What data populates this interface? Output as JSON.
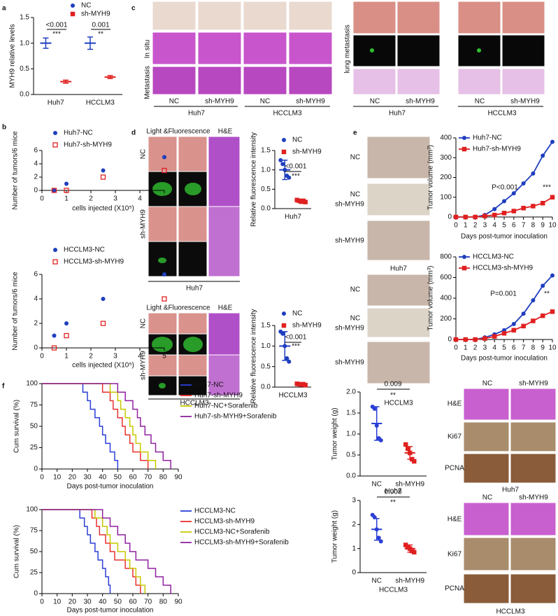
{
  "figure": {
    "panel_labels": [
      "a",
      "b",
      "c",
      "d",
      "e",
      "f"
    ],
    "image_labels": [
      "In situ",
      "Metastasis",
      "NC",
      "sh-MYH9",
      "NC",
      "sh-MYH9",
      "Huh7",
      "HCCLM3",
      "lung metastasis",
      "NC",
      "sh-MYH9",
      "NC",
      "sh-MYH9",
      "Huh7",
      "HCCLM3",
      "Light &Fluorescence",
      "H&E",
      "NC",
      "sh-MYH9",
      "Huh7",
      "Light &Fluorescence",
      "H&E",
      "NC",
      "sh-MYH9",
      "HCCLM3",
      "NC",
      "NC",
      "sh-MYH9",
      "sh-MYH9",
      "Huh7",
      "NC",
      "NC",
      "sh-MYH9",
      "sh-MYH9",
      "HCCLM3",
      "NC",
      "sh-MYH9",
      "H&E",
      "Ki67",
      "PCNA",
      "Huh7",
      "NC",
      "sh-MYH9",
      "H&E",
      "Ki67",
      "PCNA",
      "HCCLM3"
    ]
  },
  "chart_data": [
    {
      "type": "dot",
      "ylabel": "MYH9 relative levels",
      "categories": [
        "Huh7",
        "HCCLM3"
      ],
      "series": [
        {
          "name": "NC",
          "color": "#1f3fbf",
          "marker": "circle",
          "values": [
            1.0,
            1.0
          ],
          "errors": [
            0.1,
            0.12
          ]
        },
        {
          "name": "sh-MYH9",
          "color": "#e02020",
          "marker": "square",
          "values": [
            0.25,
            0.34
          ],
          "errors": [
            0.03,
            0.03
          ]
        }
      ],
      "ylim": [
        0,
        1.5
      ],
      "yticks": [
        {
          "value": 0,
          "label": "0.0"
        },
        {
          "value": 0.5,
          "label": "0.5"
        },
        {
          "value": 1,
          "label": "1.0"
        },
        {
          "value": 1.5,
          "label": "1.5"
        }
      ],
      "annotations": [
        "<0.001",
        "***",
        "0.001",
        "**"
      ]
    },
    {
      "type": "scatter",
      "ylabel": "Number of tumors/6 mice",
      "xlabel": "cells injected (X10⁵)",
      "x": [
        0.5,
        1,
        2.5,
        5
      ],
      "series": [
        {
          "name": "Huh7-NC",
          "color": "#1f3fbf",
          "marker": "circle",
          "values": [
            0,
            1,
            3,
            5
          ]
        },
        {
          "name": "Huh7-sh-MYH9",
          "color": "#e02020",
          "marker": "open-square",
          "values": [
            0,
            0,
            2,
            3
          ]
        }
      ],
      "xlim": [
        0,
        5
      ],
      "xticks": [
        0,
        1,
        2,
        3,
        4,
        5
      ],
      "ylim": [
        0,
        6
      ],
      "yticks": [
        0,
        2,
        4,
        6
      ]
    },
    {
      "type": "scatter",
      "ylabel": "Number of tumors/6 mice",
      "xlabel": "cells injected (X10⁵)",
      "x": [
        0.5,
        1,
        2.5,
        5
      ],
      "series": [
        {
          "name": "HCCLM3-NC",
          "color": "#1f3fbf",
          "marker": "circle",
          "values": [
            1,
            2,
            4,
            6
          ]
        },
        {
          "name": "HCCLM3-sh-MYH9",
          "color": "#e02020",
          "marker": "open-square",
          "values": [
            0,
            1,
            2,
            4
          ]
        }
      ],
      "xlim": [
        0,
        5
      ],
      "xticks": [
        0,
        1,
        2,
        3,
        4,
        5
      ],
      "ylim": [
        0,
        6
      ],
      "yticks": [
        0,
        2,
        4,
        6
      ]
    },
    {
      "type": "dot",
      "ylabel": "Relative fluorescence intensity",
      "categories": [
        "Huh7"
      ],
      "series": [
        {
          "name": "NC",
          "color": "#1f3fbf",
          "marker": "circle",
          "values": [
            1.0
          ],
          "errors": [
            0.25
          ],
          "points": [
            [
              1.25,
              1.15,
              1.0,
              0.85,
              0.8
            ]
          ]
        },
        {
          "name": "sh-MYH9",
          "color": "#e02020",
          "marker": "square",
          "values": [
            0.2
          ],
          "errors": [
            0.04
          ],
          "points": [
            [
              0.22,
              0.2,
              0.18,
              0.2,
              0.17
            ]
          ]
        }
      ],
      "ylim": [
        0,
        1.5
      ],
      "yticks": [
        {
          "value": 0,
          "label": "0.0"
        },
        {
          "value": 0.5,
          "label": "0.5"
        },
        {
          "value": 1,
          "label": "1.0"
        },
        {
          "value": 1.5,
          "label": "1.5"
        }
      ],
      "annotations": [
        "<0.001",
        "***"
      ]
    },
    {
      "type": "dot",
      "ylabel": "Relative fluorescence intensity",
      "categories": [
        "HCCLM3"
      ],
      "series": [
        {
          "name": "NC",
          "color": "#1f3fbf",
          "marker": "circle",
          "values": [
            1.0
          ],
          "errors": [
            0.35
          ],
          "points": [
            [
              1.35,
              1.3,
              1.0,
              0.7,
              0.62
            ]
          ]
        },
        {
          "name": "sh-MYH9",
          "color": "#e02020",
          "marker": "square",
          "values": [
            0.07
          ],
          "errors": [
            0.02
          ],
          "points": [
            [
              0.08,
              0.07,
              0.06,
              0.07,
              0.05
            ]
          ]
        }
      ],
      "ylim": [
        0,
        1.5
      ],
      "yticks": [
        {
          "value": 0,
          "label": "0.0"
        },
        {
          "value": 0.5,
          "label": "0.5"
        },
        {
          "value": 1,
          "label": "1.0"
        },
        {
          "value": 1.5,
          "label": "1.5"
        }
      ],
      "annotations": [
        "<0.001",
        "***"
      ]
    },
    {
      "type": "line",
      "ylabel": "Tumor volume (mm³)",
      "xlabel": "Days post-tumor inoculation",
      "x": [
        0,
        1,
        2,
        3,
        4,
        5,
        6,
        7,
        8,
        9,
        10
      ],
      "series": [
        {
          "name": "Huh7-NC",
          "color": "#1f3fbf",
          "marker": "circle",
          "values": [
            0,
            0,
            0,
            10,
            40,
            80,
            120,
            170,
            220,
            310,
            380
          ]
        },
        {
          "name": "Huh7-sh-MYH9",
          "color": "#e02020",
          "marker": "square",
          "values": [
            0,
            0,
            0,
            5,
            10,
            20,
            30,
            45,
            55,
            70,
            100
          ]
        }
      ],
      "xlim": [
        0,
        10
      ],
      "xticks": [
        0,
        1,
        2,
        3,
        4,
        5,
        6,
        7,
        8,
        9,
        10
      ],
      "ylim": [
        0,
        400
      ],
      "yticks": [
        0,
        100,
        200,
        300,
        400
      ],
      "annotations": [
        "P<0.001",
        "***"
      ]
    },
    {
      "type": "line",
      "ylabel": "Tumor volume (mm³)",
      "xlabel": "Days post-tumor inoculation",
      "x": [
        0,
        1,
        2,
        3,
        4,
        5,
        6,
        7,
        8,
        9,
        10
      ],
      "series": [
        {
          "name": "HCCLM3-NC",
          "color": "#1f3fbf",
          "marker": "circle",
          "values": [
            0,
            0,
            0,
            20,
            50,
            90,
            150,
            250,
            380,
            520,
            620
          ]
        },
        {
          "name": "HCCLM3-sh-MYH9",
          "color": "#e02020",
          "marker": "square",
          "values": [
            0,
            0,
            0,
            10,
            30,
            60,
            90,
            130,
            180,
            230,
            270
          ]
        }
      ],
      "xlim": [
        0,
        10
      ],
      "xticks": [
        0,
        1,
        2,
        3,
        4,
        5,
        6,
        7,
        8,
        9,
        10
      ],
      "ylim": [
        0,
        800
      ],
      "yticks": [
        0,
        200,
        400,
        600,
        800
      ],
      "annotations": [
        "P=0.001",
        "**"
      ]
    },
    {
      "type": "step",
      "ylabel": "Cum survival (%)",
      "xlabel": "Days post-tumor inoculation",
      "series": [
        {
          "name": "Huh7-NC",
          "color": "#2b3fd6",
          "x": [
            0,
            27,
            30,
            32,
            35,
            38,
            40,
            42,
            45,
            48,
            50
          ],
          "values": [
            100,
            90,
            80,
            70,
            60,
            50,
            40,
            30,
            20,
            10,
            0
          ]
        },
        {
          "name": "Huh7-sh-MYH9",
          "color": "#e83030",
          "x": [
            0,
            40,
            45,
            47,
            50,
            53,
            55,
            58,
            60,
            65,
            70
          ],
          "values": [
            100,
            90,
            80,
            70,
            60,
            50,
            40,
            30,
            20,
            10,
            0
          ]
        },
        {
          "name": "Huh7-NC+Sorafenib",
          "color": "#c8c800",
          "x": [
            0,
            45,
            50,
            52,
            55,
            58,
            60,
            62,
            65,
            70,
            75
          ],
          "values": [
            100,
            90,
            80,
            70,
            60,
            50,
            40,
            30,
            20,
            10,
            0
          ]
        },
        {
          "name": "Huh7-sh-MYH9+Sorafenib",
          "color": "#9020a0",
          "x": [
            0,
            50,
            55,
            60,
            63,
            65,
            68,
            72,
            75,
            80,
            85
          ],
          "values": [
            100,
            90,
            80,
            70,
            60,
            50,
            40,
            30,
            20,
            10,
            0
          ]
        }
      ],
      "xlim": [
        0,
        90
      ],
      "xticks": [
        0,
        10,
        20,
        30,
        40,
        50,
        60,
        70,
        80,
        90
      ],
      "ylim": [
        0,
        100
      ],
      "yticks": [
        0,
        25,
        50,
        75,
        100
      ]
    },
    {
      "type": "step",
      "ylabel": "Cum survival (%)",
      "xlabel": "Days post-tumor inoculation",
      "series": [
        {
          "name": "HCCLM3-NC",
          "color": "#2b3fd6",
          "x": [
            0,
            25,
            28,
            30,
            32,
            35,
            37,
            40,
            42,
            44,
            45
          ],
          "values": [
            100,
            90,
            80,
            70,
            60,
            50,
            40,
            30,
            20,
            10,
            0
          ]
        },
        {
          "name": "HCCLM3-sh-MYH9",
          "color": "#e83030",
          "x": [
            0,
            33,
            36,
            38,
            42,
            45,
            48,
            55,
            60,
            62,
            65
          ],
          "values": [
            100,
            90,
            80,
            70,
            60,
            50,
            40,
            30,
            20,
            10,
            0
          ]
        },
        {
          "name": "HCCLM3-NC+Sorafenib",
          "color": "#c8c800",
          "x": [
            0,
            35,
            40,
            43,
            45,
            50,
            55,
            58,
            62,
            65,
            68
          ],
          "values": [
            100,
            90,
            80,
            70,
            60,
            50,
            40,
            30,
            20,
            10,
            0
          ]
        },
        {
          "name": "HCCLM3-sh-MYH9+Sorafenib",
          "color": "#9020a0",
          "x": [
            0,
            40,
            45,
            50,
            55,
            58,
            62,
            70,
            75,
            80,
            85
          ],
          "values": [
            100,
            90,
            80,
            70,
            60,
            50,
            40,
            30,
            20,
            10,
            0
          ]
        }
      ],
      "xlim": [
        0,
        90
      ],
      "xticks": [
        0,
        10,
        20,
        30,
        40,
        50,
        60,
        70,
        80,
        90
      ],
      "ylim": [
        0,
        100
      ],
      "yticks": [
        0,
        25,
        50,
        75,
        100
      ]
    },
    {
      "type": "dot",
      "ylabel": "Tumor weight (g)",
      "xlabel": "Huh7",
      "categories": [
        "NC",
        "sh-MYH9"
      ],
      "values": [
        1.25,
        0.55
      ],
      "errors": [
        0.4,
        0.15
      ],
      "colors": [
        "#2b3fd6",
        "#e02020"
      ],
      "markers": [
        "circle",
        "square"
      ],
      "points": [
        [
          1.65,
          1.6,
          1.2,
          0.9,
          0.85
        ],
        [
          0.75,
          0.65,
          0.55,
          0.4,
          0.35
        ]
      ],
      "ylim": [
        0,
        2
      ],
      "yticks": [
        {
          "value": 0,
          "label": "0.0"
        },
        {
          "value": 0.5,
          "label": "0.5"
        },
        {
          "value": 1,
          "label": "1.0"
        },
        {
          "value": 1.5,
          "label": "1.5"
        },
        {
          "value": 2,
          "label": "2.0"
        }
      ],
      "annotations": [
        "0.009",
        "**"
      ]
    },
    {
      "type": "dot",
      "ylabel": "Tumor weight (g)",
      "xlabel": "HCCLM3",
      "categories": [
        "NC",
        "sh-MYH9"
      ],
      "values": [
        1.8,
        1.0
      ],
      "errors": [
        0.45,
        0.15
      ],
      "colors": [
        "#2b3fd6",
        "#e02020"
      ],
      "markers": [
        "circle",
        "square"
      ],
      "points": [
        [
          2.4,
          2.3,
          1.8,
          1.45,
          1.3
        ],
        [
          1.15,
          1.05,
          1.0,
          0.9,
          0.85
        ]
      ],
      "ylim": [
        0,
        3
      ],
      "yticks": [
        0,
        1,
        2,
        3
      ],
      "annotations": [
        "0.008",
        "**"
      ]
    }
  ]
}
